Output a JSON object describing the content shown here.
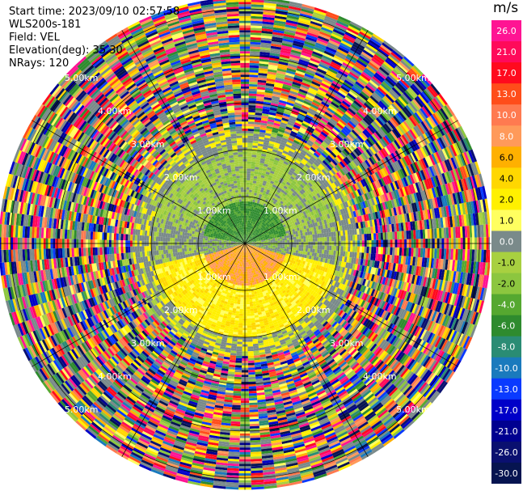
{
  "header": {
    "start_time": "Start time: 2023/09/10 02:57:58",
    "station": "WLS200s-181",
    "field": "Field: VEL",
    "elevation": "Elevation(deg): 35.30",
    "nrays": "NRays: 120"
  },
  "colorbar": {
    "unit": "m/s",
    "ticks": [
      "26.0",
      "21.0",
      "17.0",
      "13.0",
      "10.0",
      "8.0",
      "6.0",
      "4.0",
      "2.0",
      "1.0",
      "0.0",
      "-1.0",
      "-2.0",
      "-4.0",
      "-6.0",
      "-8.0",
      "-10.0",
      "-13.0",
      "-17.0",
      "-21.0",
      "-26.0",
      "-30.0"
    ],
    "colors": [
      "#ff1493",
      "#ff0a5a",
      "#ff0a1e",
      "#ff4d1a",
      "#ff7a50",
      "#ff9a5a",
      "#ffb000",
      "#ffd700",
      "#fff000",
      "#ffff60",
      "#7a8a8a",
      "#a8d040",
      "#8cc63f",
      "#55a830",
      "#2e8b2e",
      "#2a8c74",
      "#1a7abd",
      "#0a3aff",
      "#0000c8",
      "#000090",
      "#0a1070",
      "#061450"
    ]
  },
  "chart_data": {
    "type": "heatmap",
    "projection": "PPI polar",
    "field": "VEL",
    "units": "m/s",
    "rays": 120,
    "range_rings_km": [
      1.0,
      2.0,
      3.0,
      4.0,
      5.0
    ],
    "ring_labels": [
      "1.00km",
      "2.00km",
      "3.00km",
      "4.00km",
      "5.00km"
    ],
    "color_scale_bounds": [
      -30.0,
      26.0
    ]
  }
}
